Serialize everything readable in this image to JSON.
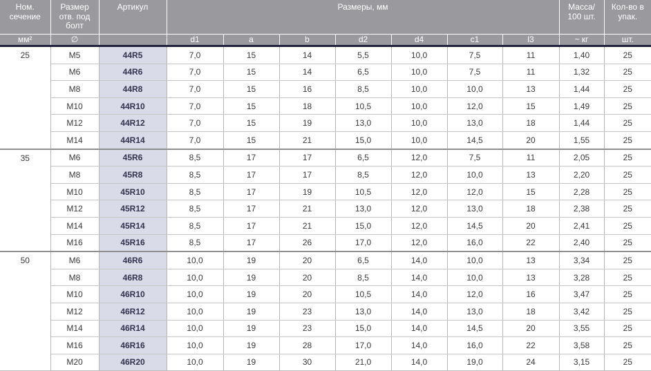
{
  "colors": {
    "header_bg": "#9a9a9e",
    "header_text": "#ffffff",
    "header_divider": "#ffffff",
    "dark_bar": "#20203a",
    "article_highlight_bg": "#d9dbe9",
    "article_text": "#33334d",
    "cell_text": "#3a3a3a",
    "row_border": "#c6c6c6",
    "column_border": "#b6b6b6",
    "section_border": "#8f8f8f"
  },
  "table": {
    "header": {
      "nominal_section": {
        "title": "Ном.\nсечение",
        "sub": "мм²"
      },
      "bolt_hole": {
        "title": "Размер\nотв. под\nболт",
        "sub": "∅"
      },
      "article": {
        "title": "Артикул",
        "sub": ""
      },
      "dimensions": {
        "title": "Размеры, мм",
        "subs": [
          "d1",
          "a",
          "b",
          "d2",
          "d4",
          "c1",
          "l3"
        ]
      },
      "mass": {
        "title": "Масса/\n100 шт.",
        "sub": "~ кг"
      },
      "quantity": {
        "title": "Кол-во в\nупак.",
        "sub": "шт."
      }
    },
    "sections": [
      {
        "section": "25",
        "rows": [
          {
            "bolt": "M5",
            "article": "44R5",
            "values": [
              "7,0",
              "15",
              "14",
              "5,5",
              "10,0",
              "7,5",
              "11",
              "1,40",
              "25"
            ]
          },
          {
            "bolt": "M6",
            "article": "44R6",
            "values": [
              "7,0",
              "15",
              "14",
              "6,5",
              "10,0",
              "7,5",
              "11",
              "1,32",
              "25"
            ]
          },
          {
            "bolt": "M8",
            "article": "44R8",
            "values": [
              "7,0",
              "15",
              "16",
              "8,5",
              "10,0",
              "10,0",
              "13",
              "1,44",
              "25"
            ]
          },
          {
            "bolt": "M10",
            "article": "44R10",
            "values": [
              "7,0",
              "15",
              "18",
              "10,5",
              "10,0",
              "12,0",
              "15",
              "1,49",
              "25"
            ]
          },
          {
            "bolt": "M12",
            "article": "44R12",
            "values": [
              "7,0",
              "15",
              "19",
              "13,0",
              "10,0",
              "13,0",
              "18",
              "1,44",
              "25"
            ]
          },
          {
            "bolt": "M14",
            "article": "44R14",
            "values": [
              "7,0",
              "15",
              "21",
              "15,0",
              "10,0",
              "14,5",
              "20",
              "1,55",
              "25"
            ]
          }
        ]
      },
      {
        "section": "35",
        "rows": [
          {
            "bolt": "M6",
            "article": "45R6",
            "values": [
              "8,5",
              "17",
              "17",
              "6,5",
              "12,0",
              "7,5",
              "11",
              "2,05",
              "25"
            ]
          },
          {
            "bolt": "M8",
            "article": "45R8",
            "values": [
              "8,5",
              "17",
              "17",
              "8,5",
              "12,0",
              "10,0",
              "13",
              "2,20",
              "25"
            ]
          },
          {
            "bolt": "M10",
            "article": "45R10",
            "values": [
              "8,5",
              "17",
              "19",
              "10,5",
              "12,0",
              "12,0",
              "15",
              "2,28",
              "25"
            ]
          },
          {
            "bolt": "M12",
            "article": "45R12",
            "values": [
              "8,5",
              "17",
              "21",
              "13,0",
              "12,0",
              "13,0",
              "18",
              "2,38",
              "25"
            ]
          },
          {
            "bolt": "M14",
            "article": "45R14",
            "values": [
              "8,5",
              "17",
              "21",
              "15,0",
              "12,0",
              "14,5",
              "20",
              "2,41",
              "25"
            ]
          },
          {
            "bolt": "M16",
            "article": "45R16",
            "values": [
              "8,5",
              "17",
              "26",
              "17,0",
              "12,0",
              "16,0",
              "22",
              "2,40",
              "25"
            ]
          }
        ]
      },
      {
        "section": "50",
        "rows": [
          {
            "bolt": "M6",
            "article": "46R6",
            "values": [
              "10,0",
              "19",
              "20",
              "6,5",
              "14,0",
              "10,0",
              "13",
              "3,34",
              "25"
            ]
          },
          {
            "bolt": "M8",
            "article": "46R8",
            "values": [
              "10,0",
              "19",
              "20",
              "8,5",
              "14,0",
              "10,0",
              "13",
              "3,28",
              "25"
            ]
          },
          {
            "bolt": "M10",
            "article": "46R10",
            "values": [
              "10,0",
              "19",
              "20",
              "10,5",
              "14,0",
              "12,0",
              "16",
              "3,47",
              "25"
            ]
          },
          {
            "bolt": "M12",
            "article": "46R12",
            "values": [
              "10,0",
              "19",
              "23",
              "13,0",
              "14,0",
              "13,0",
              "18",
              "3,42",
              "25"
            ]
          },
          {
            "bolt": "M14",
            "article": "46R14",
            "values": [
              "10,0",
              "19",
              "23",
              "15,0",
              "14,0",
              "14,5",
              "20",
              "3,55",
              "25"
            ]
          },
          {
            "bolt": "M16",
            "article": "46R16",
            "values": [
              "10,0",
              "19",
              "28",
              "17,0",
              "14,0",
              "16,0",
              "22",
              "3,58",
              "25"
            ]
          },
          {
            "bolt": "M20",
            "article": "46R20",
            "values": [
              "10,0",
              "19",
              "30",
              "21,0",
              "14,0",
              "19,0",
              "24",
              "3,15",
              "25"
            ]
          }
        ]
      }
    ]
  }
}
